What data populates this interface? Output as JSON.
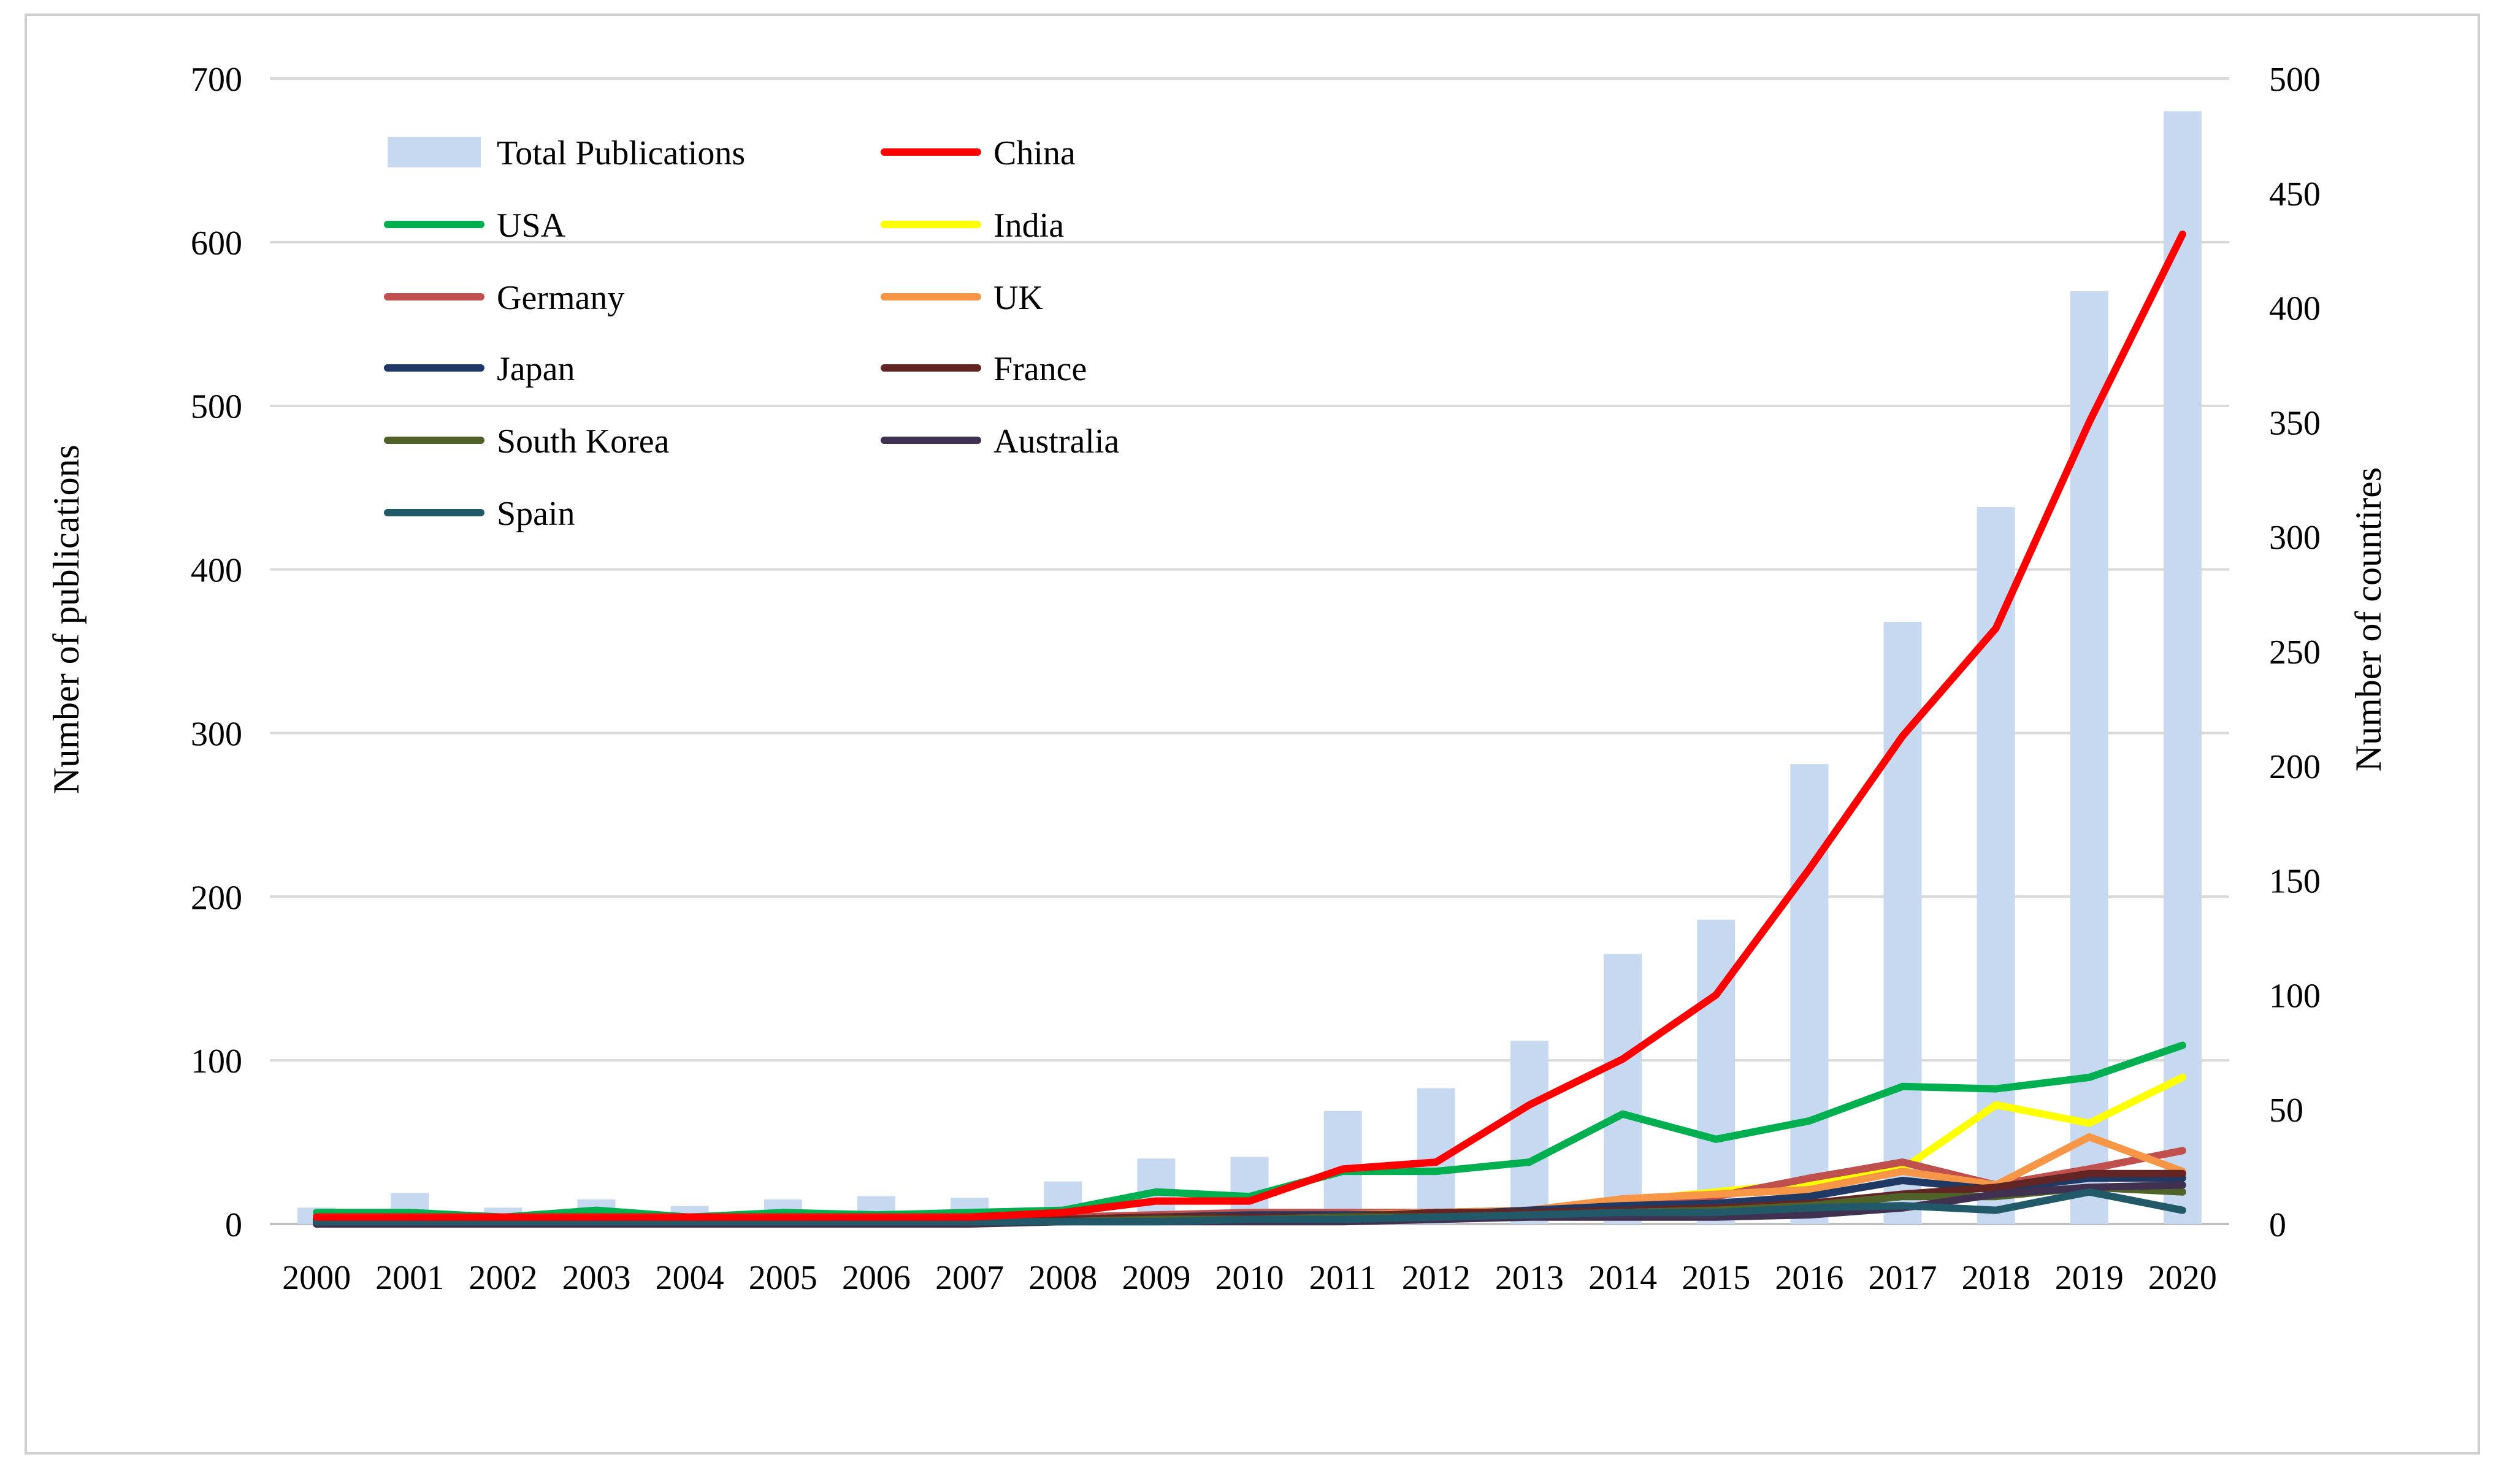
{
  "chart_data": {
    "type": "bar",
    "categories": [
      "2000",
      "2001",
      "2002",
      "2003",
      "2004",
      "2005",
      "2006",
      "2007",
      "2008",
      "2009",
      "2010",
      "2011",
      "2012",
      "2013",
      "2014",
      "2015",
      "2016",
      "2017",
      "2018",
      "2019",
      "2020"
    ],
    "bars": {
      "name": "Total Publications",
      "axis": "left",
      "color": "#c6d9f1",
      "values": [
        10,
        19,
        10,
        15,
        11,
        15,
        17,
        16,
        26,
        40,
        41,
        69,
        83,
        112,
        165,
        186,
        281,
        368,
        438,
        570,
        680
      ]
    },
    "series": [
      {
        "name": "China",
        "axis": "right",
        "color": "#ff0000",
        "values": [
          3,
          3,
          3,
          3,
          3,
          3,
          3,
          3,
          5,
          10,
          10,
          24,
          27,
          52,
          72,
          100,
          155,
          213,
          260,
          350,
          432
        ]
      },
      {
        "name": "USA",
        "axis": "right",
        "color": "#00b050",
        "values": [
          5,
          5,
          3,
          6,
          3,
          5,
          4,
          5,
          6,
          14,
          12,
          23,
          23,
          27,
          48,
          37,
          45,
          60,
          59,
          64,
          78
        ]
      },
      {
        "name": "India",
        "axis": "right",
        "color": "#ffff00",
        "values": [
          0,
          0,
          0,
          0,
          0,
          0,
          0,
          0,
          1,
          1,
          2,
          3,
          4,
          6,
          10,
          14,
          18,
          24,
          52,
          44,
          64
        ]
      },
      {
        "name": "Germany",
        "axis": "right",
        "color": "#c0504d",
        "values": [
          2,
          2,
          2,
          2,
          2,
          2,
          2,
          2,
          3,
          4,
          5,
          5,
          5,
          6,
          8,
          12,
          20,
          27,
          17,
          24,
          32
        ]
      },
      {
        "name": "UK",
        "axis": "right",
        "color": "#f79646",
        "values": [
          1,
          1,
          1,
          1,
          1,
          1,
          2,
          2,
          2,
          3,
          4,
          4,
          5,
          6,
          11,
          13,
          15,
          23,
          17,
          38,
          23
        ]
      },
      {
        "name": "Japan",
        "axis": "right",
        "color": "#1f3864",
        "values": [
          2,
          2,
          2,
          2,
          2,
          2,
          2,
          2,
          2,
          3,
          4,
          4,
          4,
          6,
          8,
          9,
          12,
          19,
          15,
          20,
          20
        ]
      },
      {
        "name": "France",
        "axis": "right",
        "color": "#632523",
        "values": [
          1,
          1,
          1,
          1,
          2,
          2,
          2,
          2,
          2,
          3,
          3,
          3,
          5,
          5,
          6,
          7,
          9,
          13,
          16,
          22,
          22
        ]
      },
      {
        "name": "South Korea",
        "axis": "right",
        "color": "#4f6228",
        "values": [
          1,
          1,
          1,
          1,
          1,
          1,
          1,
          1,
          1,
          2,
          2,
          3,
          3,
          4,
          5,
          6,
          8,
          12,
          12,
          16,
          14
        ]
      },
      {
        "name": "Australia",
        "axis": "right",
        "color": "#403151",
        "values": [
          0,
          0,
          0,
          0,
          0,
          0,
          0,
          0,
          1,
          1,
          1,
          1,
          2,
          3,
          3,
          3,
          4,
          7,
          13,
          16,
          17
        ]
      },
      {
        "name": "Spain",
        "axis": "right",
        "color": "#215968",
        "values": [
          1,
          1,
          1,
          1,
          1,
          1,
          1,
          1,
          1,
          1,
          2,
          2,
          3,
          4,
          5,
          5,
          7,
          8,
          6,
          14,
          6
        ]
      }
    ],
    "title": "",
    "xlabel": "",
    "ylabel": "Number of publications",
    "ylabel_right": "Number of countires",
    "ylim": [
      0,
      700
    ],
    "ylim_right": [
      0,
      500
    ],
    "yticks": [
      "0",
      "100",
      "200",
      "300",
      "400",
      "500",
      "600",
      "700"
    ],
    "yticks_right": [
      "0",
      "50",
      "100",
      "150",
      "200",
      "250",
      "300",
      "350",
      "400",
      "450",
      "500"
    ],
    "grid": true,
    "legend_position": "top-left"
  }
}
